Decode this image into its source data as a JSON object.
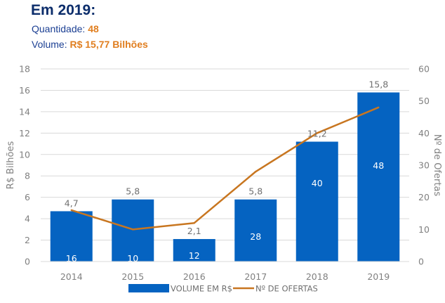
{
  "header": {
    "title": "Em 2019:",
    "quantity_label": "Quantidade:",
    "quantity_value": "48",
    "volume_label": "Volume:",
    "volume_value": "R$ 15,77 Bilhões"
  },
  "colors": {
    "bar": "#0563c1",
    "line": "#c87620",
    "grid": "#d9d9d9"
  },
  "chart_data": {
    "type": "bar",
    "categories": [
      "2014",
      "2015",
      "2016",
      "2017",
      "2018",
      "2019"
    ],
    "series": [
      {
        "name": "VOLUME EM R$",
        "type": "bar",
        "axis": "left",
        "values": [
          4.7,
          5.8,
          2.1,
          5.8,
          11.2,
          15.8
        ],
        "labels": [
          "4,7",
          "5,8",
          "2,1",
          "5,8",
          "11,2",
          "15,8"
        ]
      },
      {
        "name": "Nº DE OFERTAS",
        "type": "line",
        "axis": "right",
        "values": [
          16,
          10,
          12,
          28,
          40,
          48
        ],
        "labels": [
          "16",
          "10",
          "12",
          "28",
          "40",
          "48"
        ]
      }
    ],
    "ylabel": "R$ Bilhões",
    "y2label": "Nº de Ofertas",
    "ylim": [
      0,
      18
    ],
    "y2lim": [
      0,
      60
    ],
    "yticks": [
      0,
      2,
      4,
      6,
      8,
      10,
      12,
      14,
      16,
      18
    ],
    "y2ticks": [
      0,
      10,
      20,
      30,
      40,
      50,
      60
    ],
    "grid": true,
    "legend_position": "bottom"
  }
}
